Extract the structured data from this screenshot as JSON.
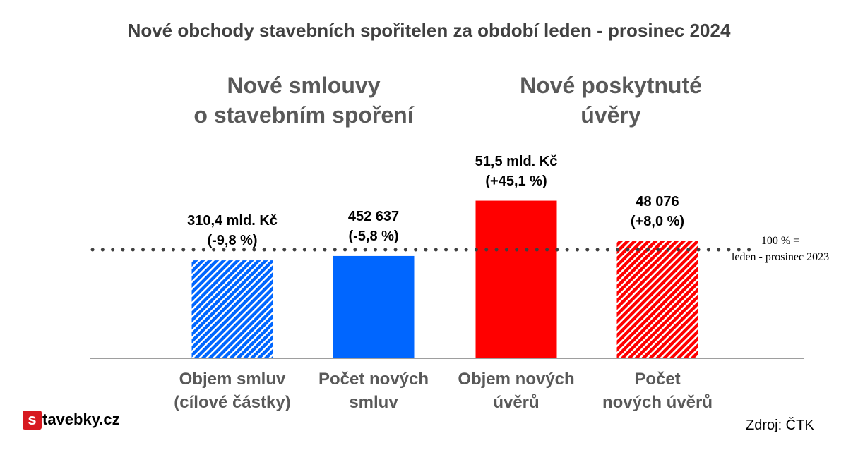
{
  "title": "Nové obchody stavebních spořitelen za období leden - prosinec 2024",
  "groups": [
    {
      "line1": "Nové smlouvy",
      "line2": "o stavebním spoření"
    },
    {
      "line1": "Nové poskytnuté",
      "line2": "úvěry"
    }
  ],
  "reference": {
    "line1": "100 % =",
    "line2": "leden - prosinec 2023"
  },
  "source": "Zdroj: ČTK",
  "logo": {
    "letter": "s",
    "text": "tavebky.cz"
  },
  "colors": {
    "blue": "#0066ff",
    "red": "#ff0000",
    "title": "#404040",
    "labels": "#595959"
  },
  "chart_data": {
    "type": "bar",
    "reference_line": 100,
    "ylim": [
      0,
      150
    ],
    "categories": [
      {
        "line1": "Objem smluv",
        "line2": "(cílové částky)"
      },
      {
        "line1": "Počet  nových",
        "line2": "smluv"
      },
      {
        "line1": "Objem nových",
        "line2": "úvěrů"
      },
      {
        "line1": "Počet",
        "line2": "nových úvěrů"
      }
    ],
    "values": [
      90.2,
      94.2,
      145.1,
      108.0
    ],
    "labels": [
      {
        "line1": "310,4 mld. Kč",
        "line2": "(-9,8 %)"
      },
      {
        "line1": "452 637",
        "line2": "(-5,8 %)"
      },
      {
        "line1": "51,5 mld. Kč",
        "line2": "(+45,1 %)"
      },
      {
        "line1": "48 076",
        "line2": "(+8,0 %)"
      }
    ],
    "bar_colors": [
      "blue",
      "blue",
      "red",
      "red"
    ],
    "bar_fill": [
      "hatched",
      "solid",
      "solid",
      "hatched"
    ]
  }
}
